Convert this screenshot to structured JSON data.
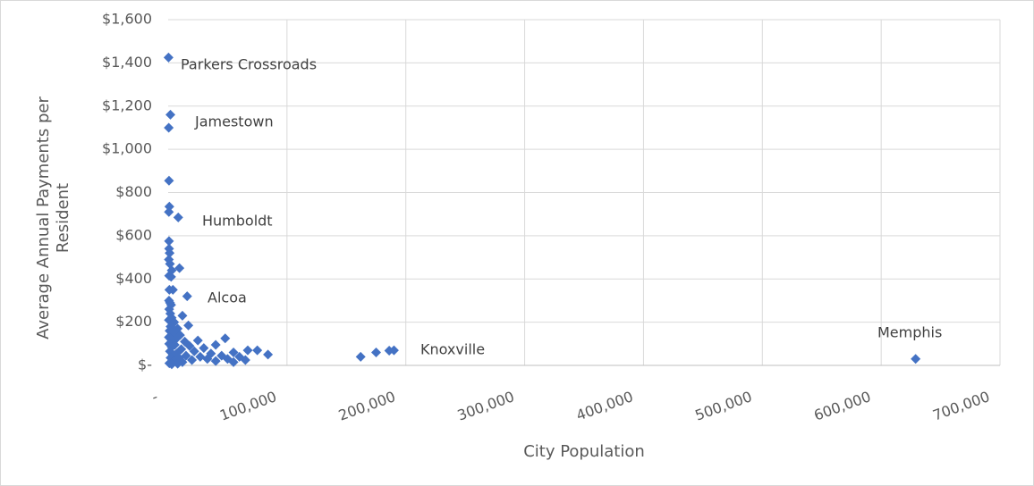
{
  "chart_data": {
    "type": "scatter",
    "x_label": "City Population",
    "y_label": "Average Annual Payments per Resident",
    "xlim": [
      0,
      700000
    ],
    "ylim": [
      0,
      1600
    ],
    "xticks": [
      {
        "value": 0,
        "label": "-"
      },
      {
        "value": 100000,
        "label": "100,000"
      },
      {
        "value": 200000,
        "label": "200,000"
      },
      {
        "value": 300000,
        "label": "300,000"
      },
      {
        "value": 400000,
        "label": "400,000"
      },
      {
        "value": 500000,
        "label": "500,000"
      },
      {
        "value": 600000,
        "label": "600,000"
      },
      {
        "value": 700000,
        "label": "700,000"
      }
    ],
    "yticks": [
      {
        "value": 0,
        "label": "$-"
      },
      {
        "value": 200,
        "label": "$200"
      },
      {
        "value": 400,
        "label": "$400"
      },
      {
        "value": 600,
        "label": "$600"
      },
      {
        "value": 800,
        "label": "$800"
      },
      {
        "value": 1000,
        "label": "$1,000"
      },
      {
        "value": 1200,
        "label": "$1,200"
      },
      {
        "value": 1400,
        "label": "$1,400"
      },
      {
        "value": 1600,
        "label": "$1,600"
      }
    ],
    "grid": true,
    "color": "#4472c4",
    "x": [
      300,
      1900,
      500,
      700,
      1000,
      600,
      8500,
      700,
      800,
      1200,
      600,
      1500,
      9500,
      3000,
      800,
      2500,
      1000,
      4000,
      16000,
      700,
      1500,
      2500,
      900,
      1800,
      12000,
      3000,
      600,
      5000,
      17000,
      2000,
      8000,
      1200,
      4000,
      10000,
      600,
      7000,
      48000,
      2500,
      25000,
      14000,
      900,
      5500,
      40000,
      18000,
      3000,
      30000,
      11000,
      67000,
      75000,
      1500,
      22000,
      55000,
      7000,
      36000,
      84000,
      4000,
      45000,
      15000,
      60000,
      27000,
      2000,
      9000,
      50000,
      33000,
      20000,
      65000,
      5000,
      40000,
      12000,
      55000,
      1000,
      3000,
      8000,
      162000,
      175000,
      186000,
      190000,
      629000
    ],
    "values": [
      1425,
      1160,
      1100,
      855,
      735,
      710,
      685,
      575,
      540,
      520,
      490,
      470,
      450,
      440,
      415,
      410,
      350,
      350,
      320,
      300,
      290,
      280,
      260,
      240,
      230,
      220,
      210,
      200,
      185,
      180,
      170,
      160,
      150,
      140,
      130,
      125,
      125,
      120,
      115,
      110,
      100,
      95,
      95,
      90,
      85,
      80,
      75,
      70,
      70,
      65,
      65,
      60,
      55,
      55,
      50,
      50,
      45,
      45,
      40,
      40,
      35,
      35,
      30,
      30,
      25,
      25,
      20,
      20,
      15,
      15,
      10,
      5,
      8,
      40,
      60,
      68,
      70,
      30
    ],
    "annotations": [
      "Parkers Crossroads",
      "Jamestown",
      "Humboldt",
      "Alcoa",
      "Knoxville",
      "Memphis"
    ]
  }
}
